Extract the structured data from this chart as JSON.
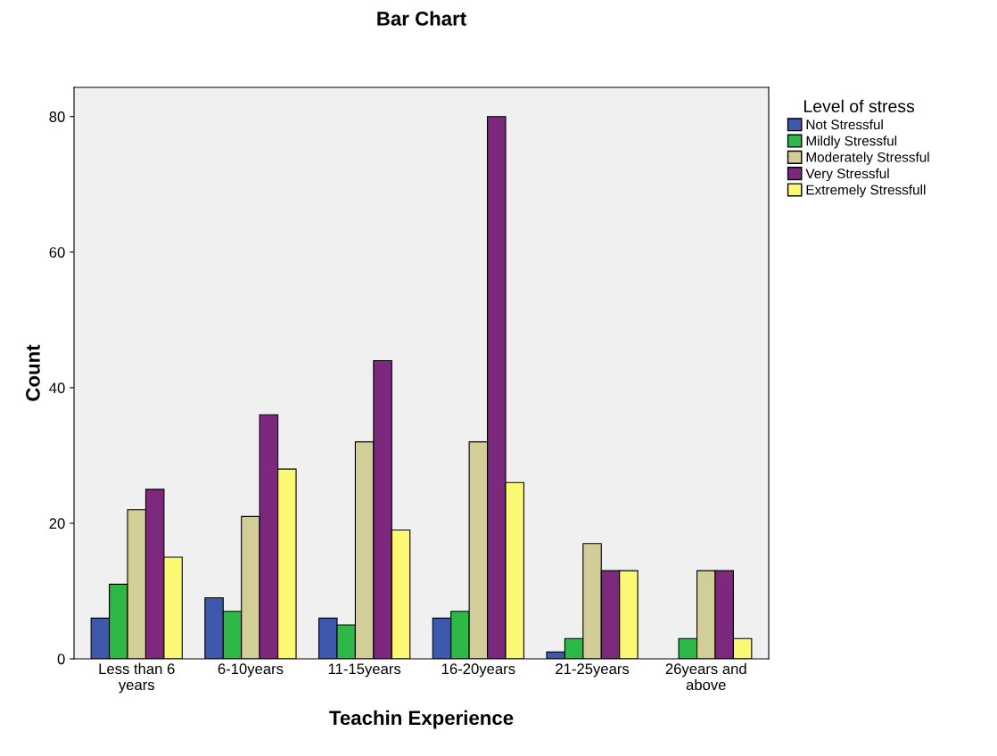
{
  "chart_data": {
    "type": "bar",
    "title": "Bar Chart",
    "xlabel": "Teachin Experience",
    "ylabel": "Count",
    "categories": [
      "Less than 6 years",
      "6-10years",
      "11-15years",
      "16-20years",
      "21-25years",
      "26years and above"
    ],
    "series": [
      {
        "name": "Not Stressful",
        "color": "#3e58ac",
        "values": [
          6,
          9,
          6,
          6,
          1,
          null
        ]
      },
      {
        "name": "Mildly Stressful",
        "color": "#2eb848",
        "values": [
          11,
          7,
          5,
          7,
          3,
          3
        ]
      },
      {
        "name": "Moderately Stressful",
        "color": "#d3ce97",
        "values": [
          22,
          21,
          32,
          32,
          17,
          13
        ]
      },
      {
        "name": "Very Stressful",
        "color": "#7c287d",
        "values": [
          25,
          36,
          44,
          80,
          13,
          13
        ]
      },
      {
        "name": "Extremely Stressfull",
        "color": "#fbf873",
        "values": [
          15,
          28,
          19,
          26,
          13,
          3
        ]
      }
    ],
    "legend_title": "Level of stress",
    "legend": "top right",
    "ylim": [
      0,
      84.3
    ],
    "yticks": [
      0,
      20,
      40,
      60,
      80
    ],
    "grid": false
  }
}
